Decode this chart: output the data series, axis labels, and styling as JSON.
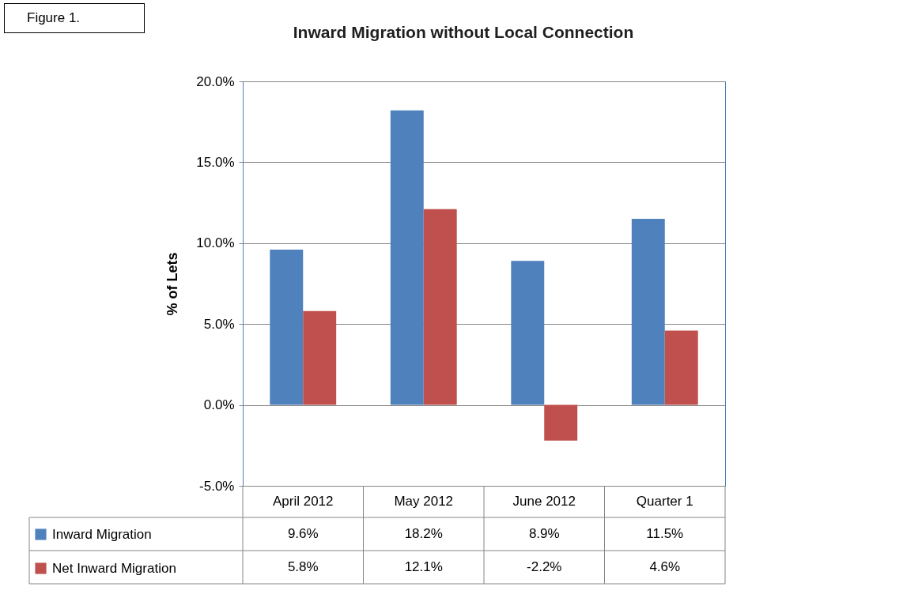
{
  "chart_data": {
    "type": "bar",
    "title": "Inward Migration without Local Connection",
    "ylabel": "% of Lets",
    "annotations": [
      "Figure 1."
    ],
    "categories": [
      "April 2012",
      "May 2012",
      "June 2012",
      "Quarter 1"
    ],
    "series": [
      {
        "name": "Inward Migration",
        "color": "#4f81bd",
        "values": [
          9.6,
          18.2,
          8.9,
          11.5
        ],
        "value_labels": [
          "9.6%",
          "18.2%",
          "8.9%",
          "11.5%"
        ]
      },
      {
        "name": "Net Inward Migration",
        "color": "#c0504d",
        "values": [
          5.8,
          12.1,
          -2.2,
          4.6
        ],
        "value_labels": [
          "5.8%",
          "12.1%",
          "-2.2%",
          "4.6%"
        ]
      }
    ],
    "ylim": [
      -5,
      20
    ],
    "yticks": [
      {
        "value": -5,
        "label": "-5.0%"
      },
      {
        "value": 0,
        "label": "0.0%"
      },
      {
        "value": 5,
        "label": "5.0%"
      },
      {
        "value": 10,
        "label": "10.0%"
      },
      {
        "value": 15,
        "label": "15.0%"
      },
      {
        "value": 20,
        "label": "20.0%"
      }
    ],
    "grid": "y",
    "legend": "bottom"
  }
}
